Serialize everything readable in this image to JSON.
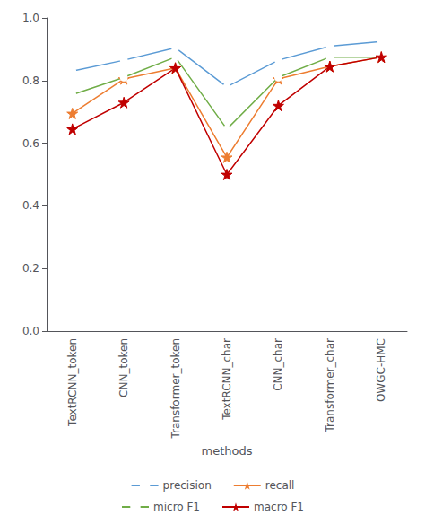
{
  "chart_data": {
    "type": "line",
    "categories": [
      "TextRCNN_token",
      "CNN_token",
      "Transformer_token",
      "TextRCNN_char",
      "CNN_char",
      "Transformer_char",
      "OWGC-HMC"
    ],
    "series": [
      {
        "name": "precision",
        "color": "#5b9bd5",
        "marker": "circle",
        "values": [
          0.83,
          0.865,
          0.905,
          0.78,
          0.865,
          0.91,
          0.925
        ]
      },
      {
        "name": "recall",
        "color": "#ed7d31",
        "marker": "star",
        "values": [
          0.695,
          0.805,
          0.84,
          0.555,
          0.805,
          0.845,
          0.875
        ]
      },
      {
        "name": "micro F1",
        "color": "#70ad47",
        "marker": "circle",
        "values": [
          0.755,
          0.81,
          0.875,
          0.645,
          0.81,
          0.875,
          0.875
        ]
      },
      {
        "name": "macro F1",
        "color": "#c00000",
        "marker": "star",
        "values": [
          0.645,
          0.73,
          0.84,
          0.5,
          0.72,
          0.845,
          0.875
        ]
      }
    ],
    "xlabel": "methods",
    "ylim": [
      0.0,
      1.0
    ],
    "yticks": [
      {
        "value": 0,
        "label": "0.0"
      },
      {
        "value": 0.2,
        "label": "0.2"
      },
      {
        "value": 0.4,
        "label": "0.4"
      },
      {
        "value": 0.6,
        "label": "0.6"
      },
      {
        "value": 0.8,
        "label": "0.8"
      },
      {
        "value": 1.0,
        "label": "1.0"
      }
    ],
    "grid": false,
    "legend": "bottom"
  }
}
